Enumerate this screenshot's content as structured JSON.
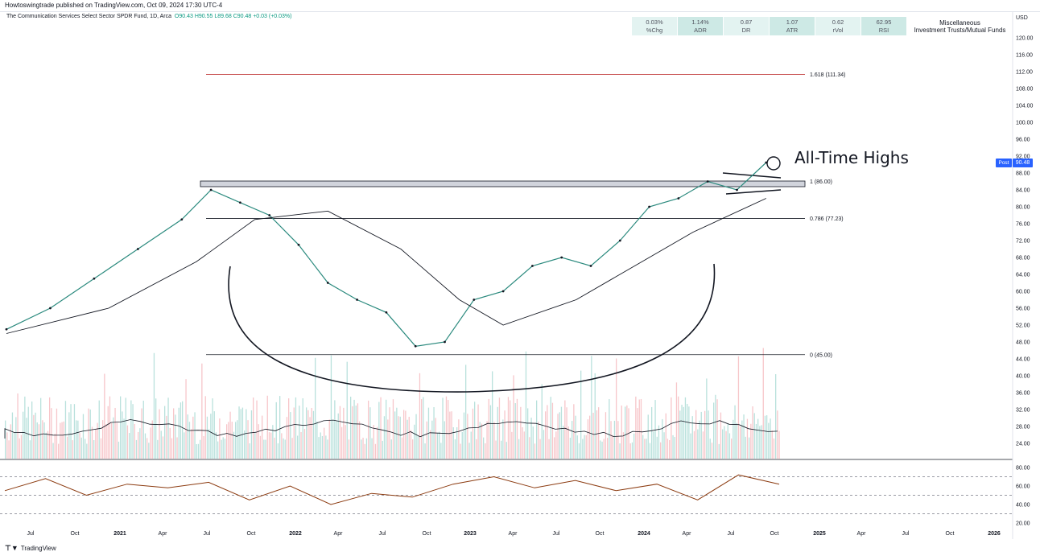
{
  "header": {
    "published_line": "Howtoswingtrade published on TradingView.com, Oct 09, 2024 17:30 UTC-4",
    "symbol_line": "The Communication Services Select Sector SPDR Fund, 1D, Arca",
    "ohlc": "O90.43 H90.55 L89.68 C90.48 +0.03 (+0.03%)",
    "change_text": "+0.03 (+0.03%)"
  },
  "stats": [
    {
      "value": "0.03%",
      "label": "%Chg"
    },
    {
      "value": "1.14%",
      "label": "ADR"
    },
    {
      "value": "0.87",
      "label": "DR"
    },
    {
      "value": "1.07",
      "label": "ATR"
    },
    {
      "value": "0.62",
      "label": "rVol"
    },
    {
      "value": "62.95",
      "label": "RSI"
    }
  ],
  "sector": {
    "line1": "Miscellaneous",
    "line2": "Investment Trusts/Mutual Funds"
  },
  "currency": "USD",
  "price_badge": {
    "label": "Post",
    "value": "90.48"
  },
  "annotation": "All-Time Highs",
  "footer": {
    "brand": "TradingView"
  },
  "colors": {
    "up": "#089981",
    "down": "#f23645",
    "fib_red": "#b71c1c",
    "rsi": "#8b3a0f",
    "badge": "#2962ff"
  },
  "chart_data": {
    "type": "line",
    "price_axis": {
      "ticks": [
        "120.00",
        "116.00",
        "112.00",
        "108.00",
        "104.00",
        "100.00",
        "96.00",
        "92.00",
        "88.00",
        "84.00",
        "80.00",
        "76.00",
        "72.00",
        "68.00",
        "64.00",
        "60.00",
        "56.00",
        "52.00",
        "48.00",
        "44.00",
        "40.00",
        "36.00",
        "32.00",
        "28.00",
        "24.00"
      ],
      "range": [
        22,
        122
      ]
    },
    "rsi_axis": {
      "ticks": [
        "80.00",
        "60.00",
        "40.00",
        "20.00"
      ],
      "levels": [
        70,
        50,
        30
      ]
    },
    "time_axis": [
      "Jul",
      "Oct",
      "2021",
      "Apr",
      "Jul",
      "Oct",
      "2022",
      "Apr",
      "Jul",
      "Oct",
      "2023",
      "Apr",
      "Jul",
      "Oct",
      "2024",
      "Apr",
      "Jul",
      "Oct",
      "2025",
      "Apr",
      "Jul",
      "Oct",
      "2026"
    ],
    "fib_levels": [
      {
        "label": "1.618 (111.34)",
        "value": 111.34
      },
      {
        "label": "1 (86.00)",
        "value": 86.0
      },
      {
        "label": "0.786 (77.23)",
        "value": 77.23
      },
      {
        "label": "0 (45.00)",
        "value": 45.0
      }
    ],
    "series": [
      {
        "name": "price",
        "x": [
          "2020-06",
          "2020-09",
          "2020-12",
          "2021-03",
          "2021-06",
          "2021-08",
          "2021-10",
          "2021-12",
          "2022-02",
          "2022-04",
          "2022-06",
          "2022-08",
          "2022-10",
          "2022-12",
          "2023-02",
          "2023-04",
          "2023-06",
          "2023-08",
          "2023-10",
          "2023-12",
          "2024-02",
          "2024-04",
          "2024-06",
          "2024-08",
          "2024-10"
        ],
        "values": [
          51,
          56,
          63,
          70,
          77,
          84,
          81,
          78,
          71,
          62,
          58,
          55,
          47,
          48,
          58,
          60,
          66,
          68,
          66,
          72,
          80,
          82,
          86,
          84,
          90.48
        ]
      },
      {
        "name": "moving-average",
        "x": [
          "2020-06",
          "2021-01",
          "2021-07",
          "2021-11",
          "2022-04",
          "2022-09",
          "2023-01",
          "2023-04",
          "2023-09",
          "2024-01",
          "2024-05",
          "2024-10"
        ],
        "values": [
          50,
          56,
          67,
          77,
          79,
          70,
          58,
          52,
          58,
          66,
          74,
          82
        ]
      },
      {
        "name": "rsi",
        "values": [
          55,
          68,
          50,
          62,
          58,
          64,
          45,
          60,
          40,
          52,
          48,
          62,
          70,
          58,
          66,
          55,
          62,
          45,
          72,
          62
        ]
      }
    ]
  }
}
